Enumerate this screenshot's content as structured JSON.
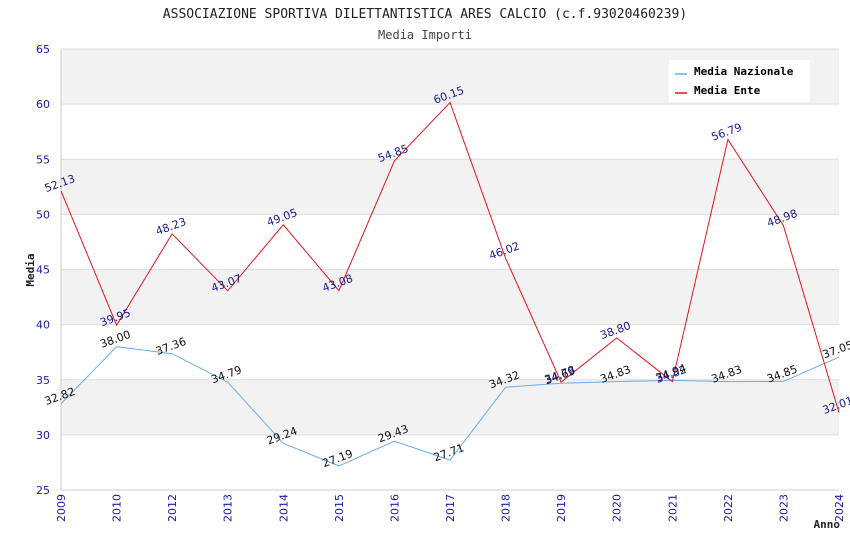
{
  "chart_data": {
    "type": "line",
    "title": "ASSOCIAZIONE SPORTIVA DILETTANTISTICA ARES CALCIO (c.f.93020460239)",
    "subtitle": "Media Importi",
    "xlabel": "Anno",
    "ylabel": "Media",
    "ylim": [
      25,
      65
    ],
    "yticks": [
      "25",
      "30",
      "35",
      "40",
      "45",
      "50",
      "55",
      "60",
      "65"
    ],
    "categories": [
      "2009",
      "2010",
      "2012",
      "2013",
      "2014",
      "2015",
      "2016",
      "2017",
      "2018",
      "2019",
      "2020",
      "2021",
      "2022",
      "2023",
      "2024"
    ],
    "legend_position": "top-right",
    "series": [
      {
        "name": "Media Nazionale",
        "color": "#6aaee8",
        "values": [
          32.82,
          38.0,
          37.36,
          34.79,
          29.24,
          27.19,
          29.43,
          27.71,
          34.32,
          34.69,
          34.83,
          34.94,
          34.83,
          34.85,
          37.05
        ],
        "labels": [
          "32.82",
          "38.00",
          "37.36",
          "34.79",
          "29.24",
          "27.19",
          "29.43",
          "27.71",
          "34.32",
          "34.69",
          "34.83",
          "34.94",
          "34.83",
          "34.85",
          "37.05"
        ]
      },
      {
        "name": "Media Ente",
        "color": "#e8141c",
        "values": [
          52.13,
          39.95,
          48.23,
          43.07,
          49.05,
          43.08,
          54.85,
          60.15,
          46.02,
          34.78,
          38.8,
          34.82,
          56.79,
          48.98,
          32.01
        ],
        "labels": [
          "52.13",
          "39.95",
          "48.23",
          "43.07",
          "49.05",
          "43.08",
          "54.85",
          "60.15",
          "46.02",
          "34.78",
          "38.80",
          "34.82",
          "56.79",
          "48.98",
          "32.01"
        ]
      }
    ]
  }
}
